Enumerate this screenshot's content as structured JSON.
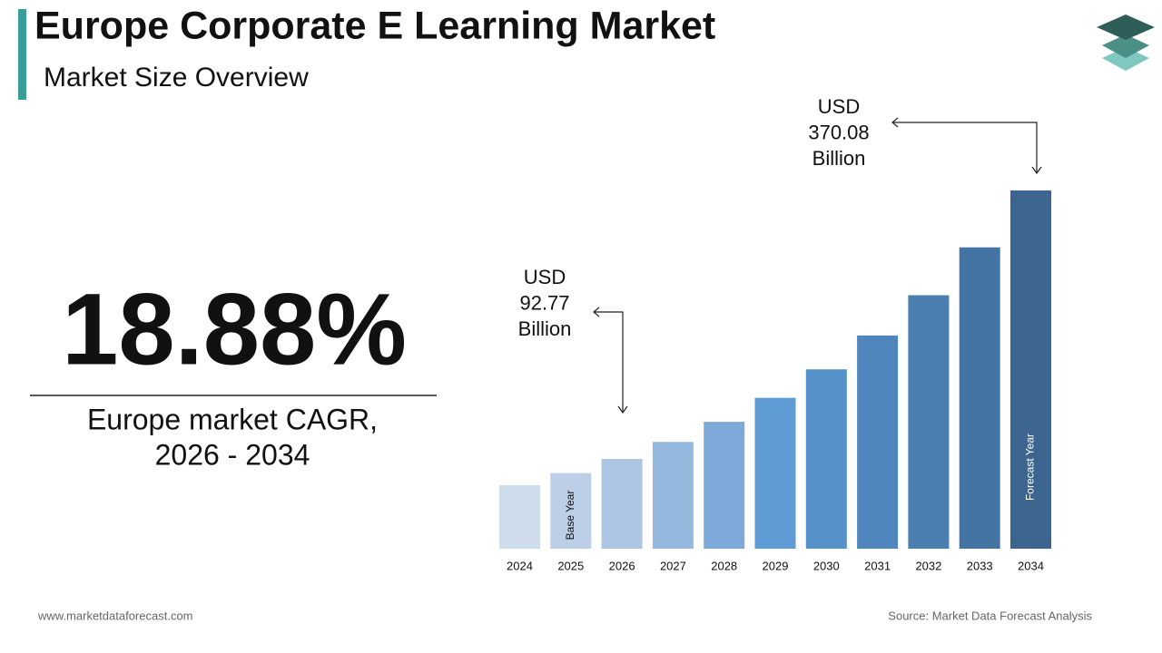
{
  "header": {
    "title": "Europe Corporate E Learning Market",
    "subtitle": "Market Size Overview"
  },
  "kpi": {
    "value": "18.88%",
    "caption_lines": [
      "Europe market CAGR,",
      "2026 - 2034"
    ]
  },
  "chart_data": {
    "type": "bar",
    "categories": [
      "2024",
      "2025",
      "2026",
      "2027",
      "2028",
      "2029",
      "2030",
      "2031",
      "2032",
      "2033",
      "2034"
    ],
    "values": [
      65.64,
      78.04,
      92.77,
      110.29,
      131.11,
      155.86,
      185.29,
      220.27,
      261.86,
      311.3,
      370.08
    ],
    "colors": [
      "#cfdcec",
      "#bccfe7",
      "#abc5e3",
      "#95b8de",
      "#7eaad9",
      "#5f9bd4",
      "#5590c9",
      "#4f86bd",
      "#4b7fb1",
      "#4474a3",
      "#3c6690"
    ],
    "bar_labels": {
      "base": "Base Year",
      "forecast": "Forecast Year"
    },
    "annotations": [
      {
        "lines": [
          "USD",
          "92.77",
          "Billion"
        ]
      },
      {
        "lines": [
          "USD",
          "370.08",
          "Billion"
        ]
      }
    ]
  },
  "footer": {
    "website": "www.marketdataforecast.com",
    "source": "Source: Market Data Forecast Analysis"
  }
}
